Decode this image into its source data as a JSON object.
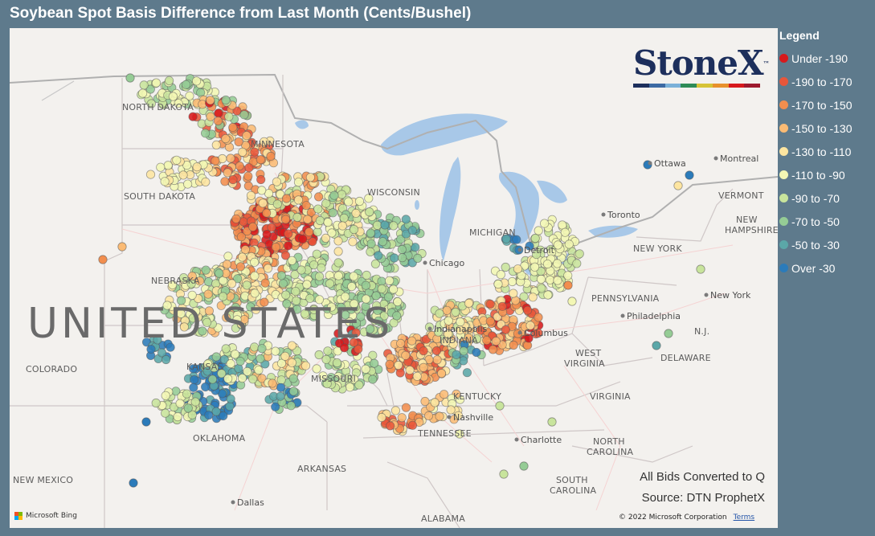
{
  "title": "Soybean Spot Basis Difference from Last Month (Cents/Bushel)",
  "legend": {
    "title": "Legend",
    "items": [
      {
        "label": "Under -190",
        "color": "#d7191c"
      },
      {
        "label": "-190 to -170",
        "color": "#e8563a"
      },
      {
        "label": "-170 to -150",
        "color": "#f28e4e"
      },
      {
        "label": "-150 to -130",
        "color": "#fbbb74"
      },
      {
        "label": "-130 to -110",
        "color": "#fde5a0"
      },
      {
        "label": "-110 to -90",
        "color": "#f3f7b4"
      },
      {
        "label": "-90 to -70",
        "color": "#c8e49c"
      },
      {
        "label": "-70 to -50",
        "color": "#95cc95"
      },
      {
        "label": "-50 to -30",
        "color": "#5ba7a8"
      },
      {
        "label": "Over -30",
        "color": "#2b7bba"
      }
    ]
  },
  "logo": {
    "text": "StoneX",
    "tm": "™",
    "bar_colors": [
      "#1d2f5c",
      "#3d6aa3",
      "#7ab0d8",
      "#2e8b57",
      "#d6c337",
      "#e8912c",
      "#d7191c",
      "#9d1a2e"
    ]
  },
  "notes": {
    "line1": "All Bids Converted to Q",
    "line2": "Source: DTN ProphetX"
  },
  "footer": {
    "copyright": "© 2022 Microsoft Corporation",
    "terms": "Terms",
    "provider": "Microsoft Bing",
    "provider_colors": [
      "#f25022",
      "#7fba00",
      "#00a4ef",
      "#ffb900"
    ]
  },
  "map": {
    "country_label": "UNITED STATES",
    "state_labels": [
      "NORTH DAKOTA",
      "MINNESOTA",
      "SOUTH DAKOTA",
      "NEBRASKA",
      "IOWA",
      "WISCONSIN",
      "MICHIGAN",
      "ILLINOIS",
      "INDIANA",
      "OHIO",
      "KANSAS",
      "MISSOURI",
      "KENTUCKY",
      "TENNESSEE",
      "OKLAHOMA",
      "ARKANSAS",
      "COLORADO",
      "NEW MEXICO",
      "WEST VIRGINIA",
      "VIRGINIA",
      "NORTH CAROLINA",
      "SOUTH CAROLINA",
      "PENNSYLVANIA",
      "NEW YORK",
      "VERMONT",
      "NEW HAMPSHIRE",
      "DELAWARE",
      "ALABAMA",
      "N.J."
    ],
    "city_labels": [
      "Ottawa",
      "Montreal",
      "Toronto",
      "Chicago",
      "Detroit",
      "Columbus",
      "Indianapolis",
      "Nashville",
      "Charlotte",
      "Philadelphia",
      "New York",
      "Dallas"
    ]
  }
}
